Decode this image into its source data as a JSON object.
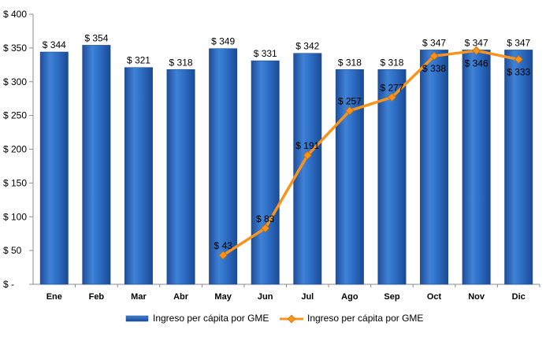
{
  "chart_data": {
    "type": "bar",
    "categories": [
      "Ene",
      "Feb",
      "Mar",
      "Abr",
      "May",
      "Jun",
      "Jul",
      "Ago",
      "Sep",
      "Oct",
      "Nov",
      "Dic"
    ],
    "series": [
      {
        "name": "Ingreso per cápita por GME",
        "kind": "bar",
        "values": [
          344,
          354,
          321,
          318,
          349,
          331,
          342,
          318,
          318,
          347,
          347,
          347
        ],
        "labels": [
          "$ 344",
          "$ 354",
          "$ 321",
          "$ 318",
          "$ 349",
          "$ 331",
          "$ 342",
          "$ 318",
          "$ 318",
          "$ 347",
          "$ 347",
          "$ 347"
        ],
        "color": "#2E6FC7"
      },
      {
        "name": "Ingreso per cápita por GME",
        "kind": "line",
        "values": [
          null,
          null,
          null,
          null,
          43,
          83,
          191,
          257,
          277,
          338,
          346,
          333
        ],
        "labels": [
          null,
          null,
          null,
          null,
          "$ 43",
          "$ 83",
          "$ 191",
          "$ 257",
          "$ 277",
          "$ 338",
          "$ 346",
          "$ 333"
        ],
        "color": "#F7941D"
      }
    ],
    "ylim": [
      0,
      400
    ],
    "yticks": [
      0,
      50,
      100,
      150,
      200,
      250,
      300,
      350,
      400
    ],
    "ytick_labels": [
      "$ -",
      "$ 50",
      "$ 100",
      "$ 150",
      "$ 200",
      "$ 250",
      "$ 300",
      "$ 350",
      "$ 400"
    ],
    "grid": false,
    "legend_position": "bottom"
  }
}
